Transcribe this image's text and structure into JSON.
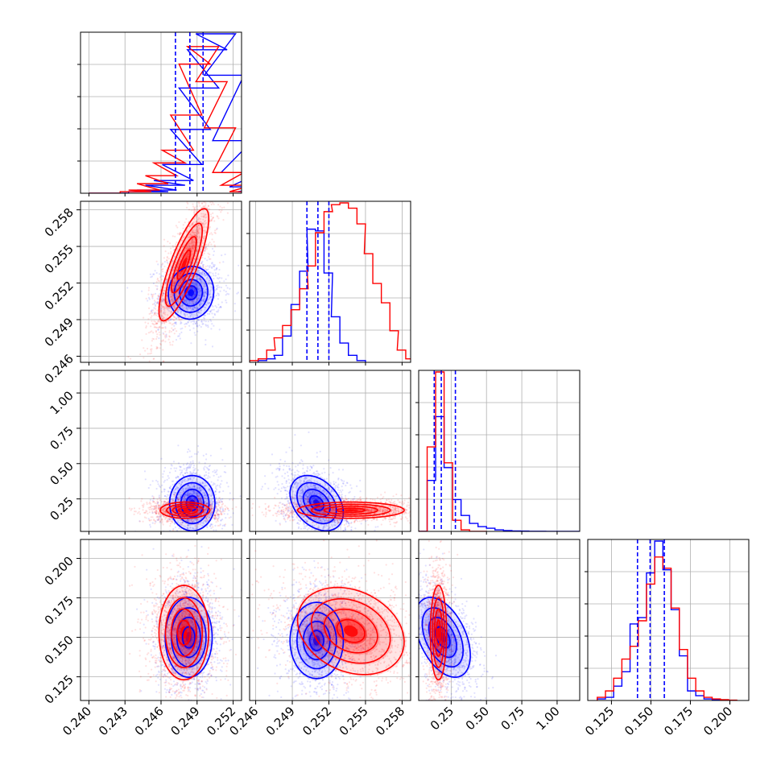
{
  "chart_data": {
    "type": "corner",
    "title": "",
    "series_colors": [
      "#0000ff",
      "#ff0000"
    ],
    "parameters": [
      {
        "range": [
          0.2393,
          0.2527
        ],
        "ticks": [
          0.24,
          0.243,
          0.246,
          0.249,
          0.252
        ],
        "tick_labels": [
          "0.240",
          "0.243",
          "0.246",
          "0.249",
          "0.252"
        ],
        "quantiles_blue": [
          0.2472,
          0.2484,
          0.2495
        ],
        "hist_blue": [
          [
            0.24,
            0.0
          ],
          [
            0.2433,
            0.01
          ],
          [
            0.244,
            0.02
          ],
          [
            0.2447,
            0.05
          ],
          [
            0.2454,
            0.08
          ],
          [
            0.2461,
            0.18
          ],
          [
            0.2468,
            0.4
          ],
          [
            0.2475,
            0.66
          ],
          [
            0.2482,
            0.9
          ],
          [
            0.2489,
            1.0
          ],
          [
            0.2496,
            0.74
          ],
          [
            0.2503,
            0.33
          ],
          [
            0.251,
            0.13
          ],
          [
            0.2517,
            0.04
          ],
          [
            0.2524,
            0.01
          ]
        ],
        "hist_red": [
          [
            0.24,
            0.0
          ],
          [
            0.2426,
            0.01
          ],
          [
            0.2433,
            0.02
          ],
          [
            0.244,
            0.06
          ],
          [
            0.2447,
            0.11
          ],
          [
            0.2454,
            0.19
          ],
          [
            0.2461,
            0.27
          ],
          [
            0.2468,
            0.49
          ],
          [
            0.2475,
            0.81
          ],
          [
            0.2482,
            0.92
          ],
          [
            0.2489,
            0.7
          ],
          [
            0.2496,
            0.41
          ],
          [
            0.2503,
            0.13
          ],
          [
            0.251,
            0.05
          ],
          [
            0.2517,
            0.01
          ]
        ]
      },
      {
        "range": [
          0.2455,
          0.2587
        ],
        "ticks": [
          0.246,
          0.249,
          0.252,
          0.255,
          0.258
        ],
        "tick_labels": [
          "0.246",
          "0.249",
          "0.252",
          "0.255",
          "0.258"
        ],
        "quantiles_blue": [
          0.2502,
          0.2511,
          0.252
        ],
        "hist_blue": [
          [
            0.2462,
            0.01
          ],
          [
            0.2469,
            0.02
          ],
          [
            0.2475,
            0.04
          ],
          [
            0.2482,
            0.15
          ],
          [
            0.2489,
            0.33
          ],
          [
            0.2496,
            0.52
          ],
          [
            0.2502,
            0.76
          ],
          [
            0.2509,
            0.75
          ],
          [
            0.2516,
            0.51
          ],
          [
            0.2522,
            0.26
          ],
          [
            0.2529,
            0.11
          ],
          [
            0.2536,
            0.04
          ],
          [
            0.2543,
            0.01
          ]
        ],
        "hist_red": [
          [
            0.2455,
            0.01
          ],
          [
            0.2462,
            0.02
          ],
          [
            0.2469,
            0.07
          ],
          [
            0.2475,
            0.14
          ],
          [
            0.2482,
            0.21
          ],
          [
            0.2489,
            0.3
          ],
          [
            0.2496,
            0.42
          ],
          [
            0.2502,
            0.55
          ],
          [
            0.2509,
            0.74
          ],
          [
            0.2516,
            0.86
          ],
          [
            0.2522,
            0.9
          ],
          [
            0.2529,
            0.91
          ],
          [
            0.2536,
            0.88
          ],
          [
            0.2543,
            0.79
          ],
          [
            0.2549,
            0.62
          ],
          [
            0.2556,
            0.45
          ],
          [
            0.2563,
            0.34
          ],
          [
            0.257,
            0.18
          ],
          [
            0.2576,
            0.07
          ],
          [
            0.2583,
            0.02
          ]
        ]
      },
      {
        "range": [
          0.02,
          1.16
        ],
        "ticks": [
          0.25,
          0.5,
          0.75,
          1.0
        ],
        "tick_labels": [
          "0.25",
          "0.50",
          "0.75",
          "1.00"
        ],
        "quantiles_blue": [
          0.13,
          0.18,
          0.28
        ],
        "hist_blue": [
          [
            0.02,
            0.0
          ],
          [
            0.08,
            0.32
          ],
          [
            0.14,
            0.72
          ],
          [
            0.2,
            0.4
          ],
          [
            0.26,
            0.2
          ],
          [
            0.32,
            0.1
          ],
          [
            0.38,
            0.05
          ],
          [
            0.44,
            0.03
          ],
          [
            0.5,
            0.02
          ],
          [
            0.56,
            0.01
          ],
          [
            0.62,
            0.005
          ],
          [
            0.68,
            0.003
          ],
          [
            0.74,
            0.002
          ],
          [
            0.8,
            0.001
          ],
          [
            0.86,
            0.001
          ],
          [
            0.92,
            0.0005
          ],
          [
            0.98,
            0.0003
          ],
          [
            1.04,
            0.0002
          ],
          [
            1.1,
            0.0001
          ]
        ],
        "hist_red": [
          [
            0.02,
            0.0
          ],
          [
            0.08,
            0.53
          ],
          [
            0.14,
            1.0
          ],
          [
            0.2,
            0.43
          ],
          [
            0.26,
            0.07
          ],
          [
            0.32,
            0.01
          ],
          [
            0.38,
            0.0
          ],
          [
            0.44,
            0.0
          ]
        ]
      },
      {
        "range": [
          0.11,
          0.212
        ],
        "ticks": [
          0.125,
          0.15,
          0.175,
          0.2
        ],
        "tick_labels": [
          "0.125",
          "0.150",
          "0.175",
          "0.200"
        ],
        "quantiles_blue": [
          0.1415,
          0.1495,
          0.1585
        ],
        "hist_blue": [
          [
            0.116,
            0.01
          ],
          [
            0.1212,
            0.02
          ],
          [
            0.1264,
            0.09
          ],
          [
            0.1316,
            0.18
          ],
          [
            0.1368,
            0.48
          ],
          [
            0.142,
            0.52
          ],
          [
            0.1472,
            0.8
          ],
          [
            0.1524,
            1.0
          ],
          [
            0.1576,
            0.82
          ],
          [
            0.1628,
            0.57
          ],
          [
            0.168,
            0.28
          ],
          [
            0.1732,
            0.06
          ],
          [
            0.1784,
            0.03
          ],
          [
            0.1836,
            0.01
          ],
          [
            0.1888,
            0.005
          ],
          [
            0.194,
            0.002
          ]
        ],
        "hist_red": [
          [
            0.116,
            0.02
          ],
          [
            0.1212,
            0.06
          ],
          [
            0.1264,
            0.14
          ],
          [
            0.1316,
            0.26
          ],
          [
            0.1368,
            0.34
          ],
          [
            0.142,
            0.5
          ],
          [
            0.1472,
            0.73
          ],
          [
            0.1524,
            0.9
          ],
          [
            0.1576,
            0.83
          ],
          [
            0.1628,
            0.58
          ],
          [
            0.168,
            0.32
          ],
          [
            0.1732,
            0.14
          ],
          [
            0.1784,
            0.06
          ],
          [
            0.1836,
            0.02
          ],
          [
            0.1888,
            0.01
          ],
          [
            0.194,
            0.005
          ],
          [
            0.1992,
            0.002
          ]
        ]
      }
    ],
    "pairs": [
      {
        "i": 1,
        "j": 0,
        "blue": {
          "center": [
            0.2485,
            0.2512
          ],
          "sigma": [
            0.00082,
            0.00094
          ],
          "rho": 0.05,
          "n": 1200
        },
        "red": {
          "center": [
            0.2479,
            0.2535
          ],
          "sigma": [
            0.0009,
            0.002
          ],
          "rho": 0.82,
          "n": 1400
        }
      },
      {
        "i": 2,
        "j": 0,
        "blue": {
          "center": [
            0.2486,
            0.22
          ],
          "sigma": [
            0.00082,
            0.085
          ],
          "rho": 0.0,
          "n": 1200
        },
        "red": {
          "center": [
            0.248,
            0.17
          ],
          "sigma": [
            0.0009,
            0.025
          ],
          "rho": 0.0,
          "n": 1400
        }
      },
      {
        "i": 2,
        "j": 1,
        "blue": {
          "center": [
            0.251,
            0.22
          ],
          "sigma": [
            0.00095,
            0.085
          ],
          "rho": -0.35,
          "n": 1200
        },
        "red": {
          "center": [
            0.2538,
            0.17
          ],
          "sigma": [
            0.0019,
            0.025
          ],
          "rho": 0.0,
          "n": 1400
        }
      },
      {
        "i": 3,
        "j": 0,
        "blue": {
          "center": [
            0.2483,
            0.15
          ],
          "sigma": [
            0.00085,
            0.011
          ],
          "rho": 0.0,
          "n": 1200
        },
        "red": {
          "center": [
            0.2479,
            0.153
          ],
          "sigma": [
            0.0009,
            0.013
          ],
          "rho": 0.0,
          "n": 1400
        }
      },
      {
        "i": 3,
        "j": 1,
        "blue": {
          "center": [
            0.251,
            0.148
          ],
          "sigma": [
            0.00095,
            0.0105
          ],
          "rho": 0.0,
          "n": 1200
        },
        "red": {
          "center": [
            0.2538,
            0.154
          ],
          "sigma": [
            0.0019,
            0.012
          ],
          "rho": -0.25,
          "n": 1400
        }
      },
      {
        "i": 3,
        "j": 2,
        "blue": {
          "center": [
            0.19,
            0.15
          ],
          "sigma": [
            0.085,
            0.011
          ],
          "rho": -0.45,
          "n": 1200
        },
        "red": {
          "center": [
            0.16,
            0.153
          ],
          "sigma": [
            0.025,
            0.013
          ],
          "rho": 0.0,
          "n": 1400
        }
      }
    ]
  }
}
